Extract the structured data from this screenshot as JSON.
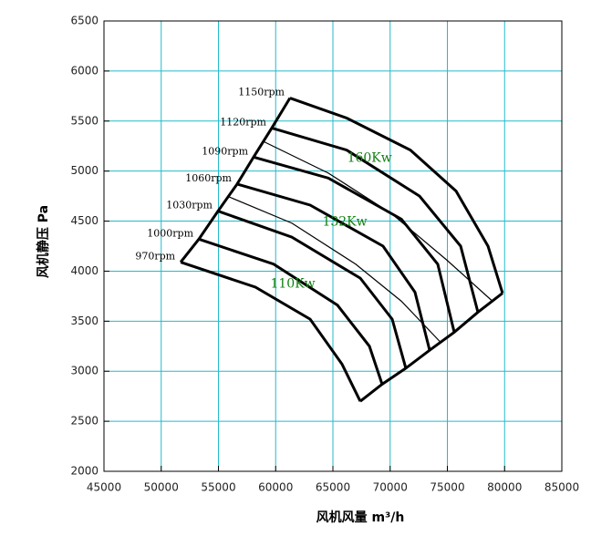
{
  "chart_data": {
    "type": "line",
    "xlabel": "风机风量  m³/h",
    "ylabel": "风机静压    Pa",
    "xlim": [
      45000,
      85000
    ],
    "xticks": [
      45000,
      50000,
      55000,
      60000,
      65000,
      70000,
      75000,
      80000,
      85000
    ],
    "ylim": [
      2000,
      6500
    ],
    "yticks": [
      2000,
      2500,
      3000,
      3500,
      4000,
      4500,
      5000,
      5500,
      6000,
      6500
    ],
    "grid": true,
    "grid_color": "#22bbcc",
    "color": "#000000",
    "series": [
      {
        "label": "1150rpm",
        "boundary": true,
        "x": [
          61250,
          66200,
          71770,
          75760,
          78550,
          79820
        ],
        "values": [
          5730,
          5530,
          5210,
          4800,
          4250,
          3780
        ]
      },
      {
        "label": "1120rpm",
        "boundary": true,
        "x": [
          59660,
          66200,
          72570,
          76160,
          77670
        ],
        "values": [
          5430,
          5210,
          4750,
          4250,
          3590
        ]
      },
      {
        "x": [
          58860,
          64600,
          70180,
          74960,
          78940
        ],
        "values": [
          5300,
          4980,
          4570,
          4110,
          3700
        ]
      },
      {
        "label": "1090rpm",
        "boundary": true,
        "x": [
          58070,
          64600,
          70980,
          74160,
          75600
        ],
        "values": [
          5140,
          4930,
          4520,
          4070,
          3390
        ]
      },
      {
        "label": "1060rpm",
        "boundary": true,
        "x": [
          56630,
          63010,
          69380,
          72170,
          73450
        ],
        "values": [
          4870,
          4660,
          4250,
          3790,
          3210
        ]
      },
      {
        "x": [
          55760,
          61410,
          66990,
          70980,
          74400
        ],
        "values": [
          4750,
          4480,
          4070,
          3700,
          3290
        ]
      },
      {
        "label": "1030rpm",
        "boundary": true,
        "x": [
          54960,
          61410,
          67390,
          70180,
          71370
        ],
        "values": [
          4600,
          4340,
          3930,
          3520,
          3030
        ]
      },
      {
        "label": "1000rpm",
        "boundary": true,
        "x": [
          53290,
          59820,
          65400,
          68190,
          69300
        ],
        "values": [
          4320,
          4070,
          3660,
          3250,
          2870
        ]
      },
      {
        "label": "970rpm",
        "boundary": true,
        "x": [
          51700,
          58230,
          63010,
          65800,
          67390
        ],
        "values": [
          4090,
          3840,
          3520,
          3070,
          2700
        ]
      }
    ],
    "annotations": [
      {
        "text": "160Kw",
        "x": 68200,
        "y": 5130,
        "color": "#108010"
      },
      {
        "text": "132Kw",
        "x": 66040,
        "y": 4490,
        "color": "#108010"
      },
      {
        "text": "110Kw",
        "x": 61500,
        "y": 3870,
        "color": "#108010"
      }
    ]
  }
}
